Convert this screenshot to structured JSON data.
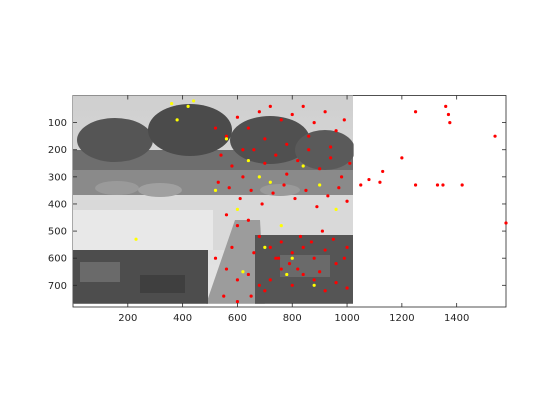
{
  "figure": {
    "background": "#ffffff"
  },
  "chart_data": {
    "type": "scatter",
    "title": "",
    "xlabel": "",
    "ylabel": "",
    "xlim": [
      0,
      1580
    ],
    "ylim": [
      780,
      0
    ],
    "y_reversed": true,
    "xticks": [
      200,
      400,
      600,
      800,
      1000,
      1200,
      1400
    ],
    "yticks": [
      100,
      200,
      300,
      400,
      500,
      600,
      700
    ],
    "grid": false,
    "legend": "none",
    "background_image": {
      "description": "grayscale photo",
      "x_extent": [
        0,
        1024
      ],
      "y_extent": [
        0,
        768
      ]
    },
    "colors": {
      "red": "#ff0000",
      "yellow": "#ffff00",
      "axes": "#262626"
    },
    "series": [
      {
        "color": "red",
        "points": [
          [
            1050,
            330
          ],
          [
            1080,
            310
          ],
          [
            1120,
            320
          ],
          [
            1130,
            280
          ],
          [
            1200,
            230
          ],
          [
            1250,
            60
          ],
          [
            1250,
            330
          ],
          [
            1330,
            330
          ],
          [
            1350,
            330
          ],
          [
            1360,
            40
          ],
          [
            1370,
            70
          ],
          [
            1375,
            100
          ],
          [
            1420,
            330
          ],
          [
            1540,
            150
          ],
          [
            1580,
            470
          ],
          [
            520,
            120
          ],
          [
            560,
            150
          ],
          [
            600,
            80
          ],
          [
            640,
            120
          ],
          [
            680,
            60
          ],
          [
            720,
            40
          ],
          [
            760,
            90
          ],
          [
            800,
            70
          ],
          [
            840,
            40
          ],
          [
            880,
            100
          ],
          [
            920,
            60
          ],
          [
            960,
            130
          ],
          [
            990,
            90
          ],
          [
            540,
            220
          ],
          [
            580,
            260
          ],
          [
            620,
            300
          ],
          [
            660,
            200
          ],
          [
            700,
            250
          ],
          [
            740,
            220
          ],
          [
            780,
            290
          ],
          [
            820,
            240
          ],
          [
            860,
            200
          ],
          [
            900,
            270
          ],
          [
            940,
            230
          ],
          [
            980,
            300
          ],
          [
            1010,
            250
          ],
          [
            530,
            320
          ],
          [
            570,
            340
          ],
          [
            610,
            380
          ],
          [
            650,
            350
          ],
          [
            690,
            400
          ],
          [
            730,
            360
          ],
          [
            770,
            330
          ],
          [
            810,
            380
          ],
          [
            850,
            350
          ],
          [
            890,
            410
          ],
          [
            930,
            370
          ],
          [
            970,
            340
          ],
          [
            1000,
            390
          ],
          [
            560,
            440
          ],
          [
            600,
            480
          ],
          [
            640,
            460
          ],
          [
            680,
            520
          ],
          [
            720,
            560
          ],
          [
            760,
            540
          ],
          [
            800,
            580
          ],
          [
            840,
            560
          ],
          [
            880,
            600
          ],
          [
            920,
            570
          ],
          [
            960,
            620
          ],
          [
            1000,
            560
          ],
          [
            520,
            600
          ],
          [
            560,
            640
          ],
          [
            600,
            680
          ],
          [
            640,
            660
          ],
          [
            680,
            700
          ],
          [
            720,
            680
          ],
          [
            760,
            640
          ],
          [
            800,
            700
          ],
          [
            840,
            660
          ],
          [
            880,
            680
          ],
          [
            920,
            720
          ],
          [
            960,
            690
          ],
          [
            1000,
            710
          ],
          [
            550,
            740
          ],
          [
            600,
            760
          ],
          [
            650,
            740
          ],
          [
            700,
            720
          ],
          [
            750,
            600
          ],
          [
            790,
            620
          ],
          [
            830,
            520
          ],
          [
            870,
            540
          ],
          [
            910,
            500
          ],
          [
            950,
            530
          ],
          [
            990,
            600
          ],
          [
            620,
            200
          ],
          [
            700,
            160
          ],
          [
            780,
            180
          ],
          [
            860,
            150
          ],
          [
            940,
            190
          ],
          [
            580,
            560
          ],
          [
            660,
            580
          ],
          [
            740,
            600
          ],
          [
            820,
            640
          ],
          [
            900,
            650
          ]
        ]
      },
      {
        "color": "yellow",
        "points": [
          [
            360,
            30
          ],
          [
            420,
            40
          ],
          [
            440,
            20
          ],
          [
            380,
            90
          ],
          [
            230,
            530
          ],
          [
            520,
            350
          ],
          [
            600,
            420
          ],
          [
            680,
            300
          ],
          [
            760,
            480
          ],
          [
            840,
            260
          ],
          [
            560,
            160
          ],
          [
            640,
            240
          ],
          [
            720,
            320
          ],
          [
            800,
            600
          ],
          [
            880,
            700
          ],
          [
            960,
            420
          ],
          [
            620,
            650
          ],
          [
            700,
            560
          ],
          [
            780,
            660
          ],
          [
            900,
            330
          ]
        ]
      }
    ]
  }
}
